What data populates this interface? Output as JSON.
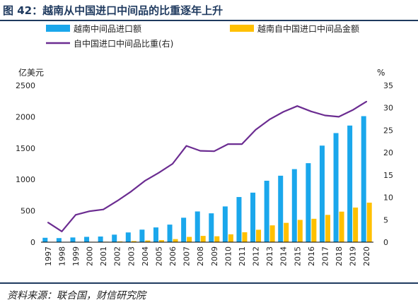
{
  "title": "图 42：越南从中国进口中间品的比重逐年上升",
  "source": "资料来源：联合国，财信研究院",
  "colors": {
    "import": "#1aa7ec",
    "gold": "#ffc000",
    "ratio": "#6b2c91",
    "title": "#1f3a5f"
  },
  "chart_data": {
    "type": "bar",
    "categories": [
      "1997",
      "1998",
      "1999",
      "2000",
      "2001",
      "2002",
      "2003",
      "2004",
      "2005",
      "2006",
      "2007",
      "2008",
      "2009",
      "2010",
      "2011",
      "2012",
      "2013",
      "2014",
      "2015",
      "2016",
      "2017",
      "2018",
      "2019",
      "2020"
    ],
    "left_axis": {
      "unit": "亿美元",
      "range": [
        0,
        2500
      ],
      "ticks": [
        0,
        500,
        1000,
        1500,
        2000,
        2500
      ]
    },
    "right_axis": {
      "unit": "%",
      "range": [
        0,
        35
      ],
      "ticks": [
        0,
        5,
        10,
        15,
        20,
        25,
        30,
        35
      ]
    },
    "legend_position": "top",
    "series": [
      {
        "name": "越南中间品进口额",
        "kind": "bar",
        "axis": "left",
        "values": [
          70,
          65,
          75,
          85,
          90,
          120,
          155,
          200,
          235,
          280,
          390,
          490,
          460,
          570,
          720,
          790,
          980,
          1060,
          1165,
          1260,
          1540,
          1740,
          1860,
          2010
        ]
      },
      {
        "name": "越南自中国进口中间品金额",
        "kind": "bar",
        "axis": "left",
        "values": [
          3,
          2,
          4,
          6,
          7,
          11,
          17,
          27,
          32,
          49,
          84,
          100,
          94,
          125,
          158,
          198,
          268,
          308,
          355,
          373,
          435,
          487,
          552,
          630
        ]
      },
      {
        "name": "自中国进口中间品比重(右)",
        "kind": "line",
        "axis": "right",
        "values": [
          4.4,
          2.4,
          6.1,
          6.9,
          7.3,
          9.2,
          11.3,
          13.7,
          15.5,
          17.5,
          21.5,
          20.4,
          20.3,
          21.9,
          21.9,
          25.1,
          27.4,
          29.1,
          30.4,
          29.2,
          28.3,
          28.0,
          29.5,
          31.4
        ]
      }
    ]
  }
}
